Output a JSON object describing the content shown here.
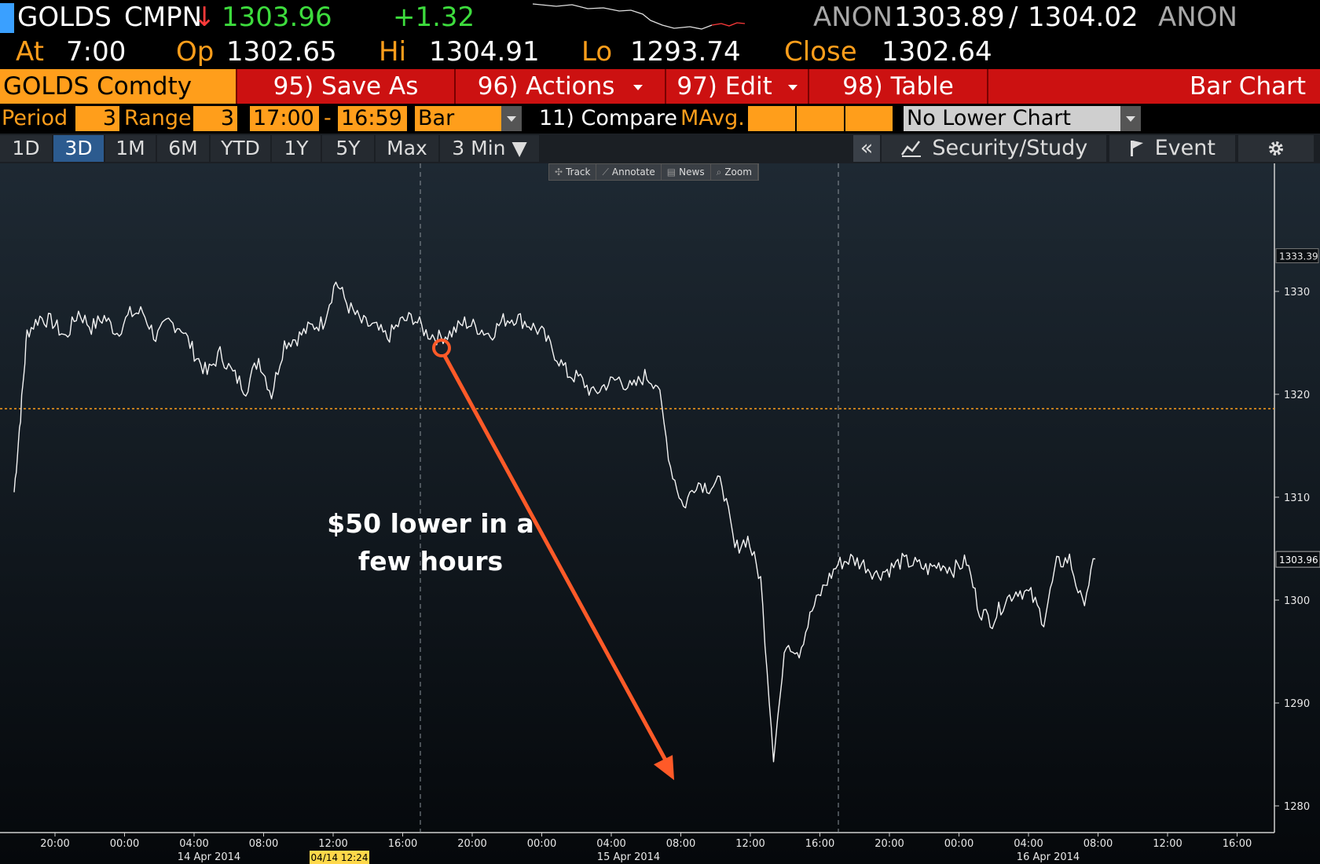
{
  "quote": {
    "ticker": "GOLDS",
    "source": "CMPN",
    "arrow": "↓",
    "last": "1303.96",
    "change": "+1.32",
    "bid_source": "ANON",
    "bid": "1303.89",
    "sep": "/",
    "ask": "1304.02",
    "ask_source": "ANON"
  },
  "stats": {
    "at_label": "At",
    "at_value": "7:00",
    "op_label": "Op",
    "op_value": "1302.65",
    "hi_label": "Hi",
    "hi_value": "1304.91",
    "lo_label": "Lo",
    "lo_value": "1293.74",
    "close_label": "Close",
    "close_value": "1302.64"
  },
  "menu": {
    "security": "GOLDS Comdty",
    "save_as": "95) Save As",
    "actions": "96) Actions",
    "edit": "97) Edit",
    "table": "98) Table",
    "chart_name": "Bar Chart"
  },
  "params": {
    "period_label": "Period",
    "period_value": "3",
    "range_label": "Range",
    "range_value": "3",
    "time_from": "17:00",
    "dash": "-",
    "time_to": "16:59",
    "chart_type": "Bar",
    "compare": "11) Compare",
    "mavg": "MAvg.",
    "lower_chart": "No Lower Chart"
  },
  "timeframes": [
    "1D",
    "3D",
    "1M",
    "6M",
    "YTD",
    "1Y",
    "5Y",
    "Max",
    "3 Min ▼"
  ],
  "active_timeframe": "3D",
  "right_buttons": {
    "collapse": "«",
    "security_study": "Security/Study",
    "event": "Event"
  },
  "chart_toolbar": [
    "Track",
    "Annotate",
    "News",
    "Zoom"
  ],
  "icons": [
    "down-arrow-icon",
    "dropdown-arrow-icon",
    "chart-icon",
    "flag-icon",
    "gear-icon",
    "track-icon",
    "annotate-icon",
    "news-icon",
    "zoom-icon"
  ],
  "colors": {
    "accent": "#ff9e1b",
    "menu_red": "#cc1111",
    "up_green": "#3ddc3d",
    "annotation_arrow": "#ff5a28",
    "reference_line": "#ff9e1b"
  },
  "chart_data": {
    "type": "line",
    "ylim": [
      1278,
      1334
    ],
    "y_ticks": [
      1280,
      1290,
      1300,
      1310,
      1320,
      1330
    ],
    "y_tick_labels": [
      "1280",
      "1290",
      "1300",
      "1310",
      "1320",
      "1330"
    ],
    "top_label": "1333.39",
    "last_label": "1303.96",
    "last_value": 1303.96,
    "reference_value": 1318.6,
    "x_tick_labels": [
      "20:00",
      "00:00",
      "04:00",
      "08:00",
      "12:00",
      "16:00",
      "20:00",
      "00:00",
      "04:00",
      "08:00",
      "12:00",
      "16:00",
      "20:00",
      "00:00",
      "04:00",
      "08:00",
      "12:00",
      "16:00"
    ],
    "x_day_labels": [
      "14 Apr 2014",
      "15 Apr 2014",
      "16 Apr 2014"
    ],
    "cursor_label": "04/14 12:24",
    "annotation": [
      "$50 lower in a",
      "few hours"
    ],
    "annotation_from": 1324.5,
    "annotation_to": 1282.5,
    "series": [
      {
        "x": [
          0,
          1,
          2,
          4,
          6,
          8,
          10,
          12,
          14,
          16,
          18,
          20,
          22,
          24,
          26,
          28,
          30,
          32,
          34,
          36,
          38,
          40,
          42,
          44,
          46,
          48,
          50,
          52,
          54,
          56,
          58,
          60,
          62,
          64,
          66,
          68,
          70,
          72,
          74,
          76,
          78,
          80,
          82,
          84,
          86,
          88,
          90,
          92,
          94,
          96,
          98,
          100,
          102,
          104,
          106,
          108,
          110,
          112,
          114,
          116,
          118,
          120,
          122,
          124,
          126,
          128,
          130,
          132,
          134,
          136,
          138,
          140,
          142,
          144,
          146,
          148,
          150,
          152,
          154,
          156,
          158,
          160,
          162,
          164,
          166,
          168
        ],
        "values": [
          1310.5,
          1318.0,
          1326.0,
          1327.5,
          1327.0,
          1325.5,
          1328.0,
          1326.5,
          1327.5,
          1326.0,
          1327.8,
          1328.0,
          1325.5,
          1327.0,
          1326.5,
          1324.0,
          1322.0,
          1324.0,
          1322.0,
          1320.5,
          1323.5,
          1320.0,
          1325.0,
          1325.5,
          1326.5,
          1327.0,
          1331.0,
          1328.5,
          1327.0,
          1326.5,
          1325.5,
          1327.0,
          1327.5,
          1326.0,
          1325.5,
          1326.0,
          1327.0,
          1326.5,
          1325.8,
          1327.2,
          1327.5,
          1326.8,
          1326.0,
          1324.0,
          1322.0,
          1321.5,
          1320.0,
          1321.0,
          1321.5,
          1320.5,
          1321.8,
          1321.0,
          1313.0,
          1309.0,
          1311.5,
          1311.0,
          1311.5,
          1305.0,
          1306.0,
          1302.0,
          1285.0,
          1296.0,
          1295.0,
          1299.0,
          1301.5,
          1303.5,
          1304.0,
          1303.5,
          1302.5,
          1303.0,
          1303.8,
          1303.5,
          1303.0,
          1303.5,
          1303.0,
          1303.8,
          1299.0,
          1298.0,
          1300.0,
          1301.0,
          1300.5,
          1298.0,
          1303.5,
          1304.0,
          1299.5,
          1304.0
        ]
      }
    ]
  }
}
